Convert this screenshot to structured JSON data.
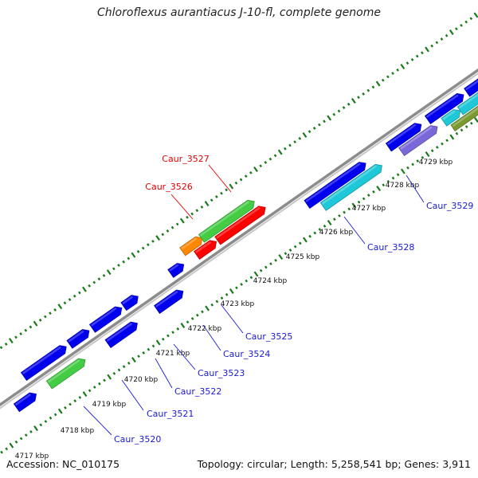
{
  "title": "Chloroflexus aurantiacus J-10-fl, complete genome",
  "footer": {
    "accession": "Accession: NC_010175",
    "summary": "Topology: circular; Length: 5,258,541 bp; Genes: 3,911"
  },
  "colors": {
    "backbone": "#8c8c8c",
    "ticks": "#1a7a1a",
    "label_default": "#1a1ad0",
    "label_highlight": "#e00000"
  },
  "scale_labels": [
    "4717 kbp",
    "4718 kbp",
    "4719 kbp",
    "4720 kbp",
    "4721 kbp",
    "4722 kbp",
    "4723 kbp",
    "4724 kbp",
    "4725 kbp",
    "4726 kbp",
    "4727 kbp",
    "4728 kbp",
    "4729 kbp"
  ],
  "gene_labels": [
    {
      "name": "Caur_3520",
      "color": "#1a1ad0"
    },
    {
      "name": "Caur_3521",
      "color": "#1a1ad0"
    },
    {
      "name": "Caur_3522",
      "color": "#1a1ad0"
    },
    {
      "name": "Caur_3523",
      "color": "#1a1ad0"
    },
    {
      "name": "Caur_3524",
      "color": "#1a1ad0"
    },
    {
      "name": "Caur_3525",
      "color": "#1a1ad0"
    },
    {
      "name": "Caur_3526",
      "color": "#e00000"
    },
    {
      "name": "Caur_3527",
      "color": "#e00000"
    },
    {
      "name": "Caur_3528",
      "color": "#1a1ad0"
    },
    {
      "name": "Caur_3529",
      "color": "#1a1ad0"
    }
  ],
  "features": [
    {
      "lane": 2,
      "start": -25,
      "end": 0,
      "color": "#ff0000",
      "dir": 1
    },
    {
      "lane": 3,
      "start": 30,
      "end": 60,
      "color": "#0000ee",
      "dir": 1
    },
    {
      "lane": 2,
      "start": 60,
      "end": 125,
      "color": "#0000ee",
      "dir": 1
    },
    {
      "lane": 3,
      "start": 80,
      "end": 135,
      "color": "#44cc44",
      "dir": 1
    },
    {
      "lane": 2,
      "start": 130,
      "end": 160,
      "color": "#0000ee",
      "dir": 1
    },
    {
      "lane": 2,
      "start": 165,
      "end": 210,
      "color": "#0000ee",
      "dir": 1
    },
    {
      "lane": 3,
      "start": 170,
      "end": 215,
      "color": "#0000ee",
      "dir": 1
    },
    {
      "lane": 2,
      "start": 213,
      "end": 235,
      "color": "#0000ee",
      "dir": 1
    },
    {
      "lane": 3,
      "start": 245,
      "end": 285,
      "color": "#0000ee",
      "dir": 1
    },
    {
      "lane": 2,
      "start": 285,
      "end": 305,
      "color": "#0000ee",
      "dir": 1
    },
    {
      "lane": 1,
      "start": 313,
      "end": 343,
      "color": "#ff8800",
      "dir": 1
    },
    {
      "lane": 1,
      "start": 342,
      "end": 423,
      "color": "#44cc44",
      "dir": 1
    },
    {
      "lane": 2,
      "start": 325,
      "end": 355,
      "color": "#ff0000",
      "dir": 1
    },
    {
      "lane": 2,
      "start": 357,
      "end": 430,
      "color": "#ff0000",
      "dir": 1
    },
    {
      "lane": 3,
      "start": 475,
      "end": 565,
      "color": "#0000ee",
      "dir": 1
    },
    {
      "lane": 4,
      "start": 490,
      "end": 580,
      "color": "#1ec8d8",
      "dir": 1
    },
    {
      "lane": 3,
      "start": 600,
      "end": 650,
      "color": "#0000ee",
      "dir": 1
    },
    {
      "lane": 4,
      "start": 610,
      "end": 665,
      "color": "#7b68d8",
      "dir": 1
    },
    {
      "lane": 3,
      "start": 660,
      "end": 715,
      "color": "#0000ee",
      "dir": 1
    },
    {
      "lane": 4,
      "start": 675,
      "end": 700,
      "color": "#1ec8d8",
      "dir": 1
    },
    {
      "lane": 4,
      "start": 700,
      "end": 740,
      "color": "#1ec8d8",
      "dir": 1
    },
    {
      "lane": 4,
      "start": 740,
      "end": 800,
      "color": "#0000aa",
      "dir": 1
    },
    {
      "lane": 5,
      "start": 680,
      "end": 740,
      "color": "#7a9a30",
      "dir": 1
    },
    {
      "lane": 5,
      "start": 740,
      "end": 800,
      "color": "#000088",
      "dir": 1
    },
    {
      "lane": 3,
      "start": 720,
      "end": 800,
      "color": "#0000ee",
      "dir": 1
    }
  ]
}
